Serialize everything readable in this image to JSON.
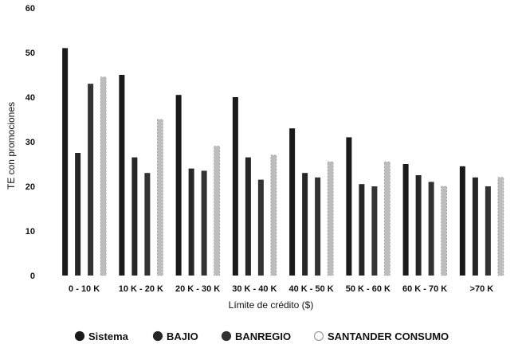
{
  "chart_data": {
    "type": "bar",
    "title": "",
    "xlabel": "Límite de crédito ($)",
    "ylabel": "TE con promociones",
    "ylim": [
      0,
      60
    ],
    "yticks": [
      0,
      10,
      20,
      30,
      40,
      50,
      60
    ],
    "grid": false,
    "legend_position": "bottom",
    "categories": [
      "0 - 10 K",
      "10 K - 20 K",
      "20 K - 30 K",
      "30 K - 40 K",
      "40 K - 50 K",
      "50 K - 60 K",
      "60 K - 70 K",
      ">70 K"
    ],
    "series": [
      {
        "name": "Sistema",
        "color": "#1a1a1a",
        "values": [
          51,
          45,
          40.5,
          40,
          33,
          31,
          25,
          24.5
        ]
      },
      {
        "name": "BAJIO",
        "color": "#262626",
        "values": [
          27.5,
          26.5,
          24,
          26.5,
          23,
          20.5,
          22.5,
          22
        ]
      },
      {
        "name": "BANREGIO",
        "color": "#333333",
        "values": [
          43,
          23,
          23.5,
          21.5,
          22,
          20,
          21,
          20
        ]
      },
      {
        "name": "SANTANDER CONSUMO",
        "color": "#bdbdbd",
        "values": [
          44.5,
          35,
          29,
          27,
          25.5,
          25.5,
          20,
          22
        ]
      }
    ]
  }
}
